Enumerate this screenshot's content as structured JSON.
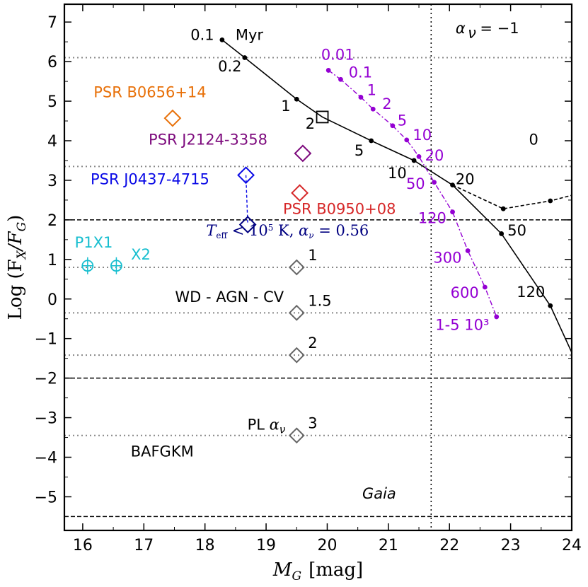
{
  "chart_data": {
    "type": "scatter",
    "xlabel": "M",
    "xlabel_sub": "G",
    "xlabel_unit": "[mag]",
    "ylabel": "Log (F",
    "ylabel_sub1": "X",
    "ylabel_mid": "/F",
    "ylabel_sub2": "G",
    "ylabel_end": ")",
    "xlim": [
      15.7,
      24.0
    ],
    "ylim": [
      -5.85,
      7.45
    ],
    "xticks": [
      16,
      17,
      18,
      19,
      20,
      21,
      22,
      23,
      24
    ],
    "yticks": [
      -5,
      -4,
      -3,
      -2,
      -1,
      0,
      1,
      2,
      3,
      4,
      5,
      6,
      7
    ],
    "hlines_dotted": [
      6.1,
      3.35,
      0.8,
      -0.35,
      -1.42,
      -3.45
    ],
    "hlines_dashed": [
      2.0,
      -2.0,
      -5.5
    ],
    "vline_dotted": 21.7,
    "colors": {
      "black": "#000000",
      "orange": "#e8710a",
      "purple": "#7d0a7d",
      "blue": "#0a0ae6",
      "red": "#d62728",
      "navy": "#000080",
      "cyan": "#17becf",
      "violet": "#9400d3",
      "gray": "#666666",
      "grid": "#888888"
    },
    "series": [
      {
        "name": "cooling-track",
        "color": "#000000",
        "points": [
          [
            18.28,
            6.55
          ],
          [
            18.65,
            6.1
          ],
          [
            19.5,
            5.05
          ],
          [
            19.92,
            4.6
          ],
          [
            20.72,
            4.0
          ],
          [
            21.42,
            3.5
          ],
          [
            22.05,
            2.88
          ],
          [
            22.85,
            1.65
          ],
          [
            23.65,
            -0.17
          ],
          [
            24.0,
            -1.35
          ]
        ],
        "markers": [
          [
            18.28,
            6.55
          ],
          [
            18.65,
            6.1
          ],
          [
            19.5,
            5.05
          ],
          [
            20.72,
            4.0
          ],
          [
            21.42,
            3.5
          ],
          [
            22.05,
            2.88
          ],
          [
            22.85,
            1.65
          ],
          [
            23.65,
            -0.17
          ]
        ],
        "labels": [
          {
            "text": "0.1",
            "x": 18.15,
            "y": 6.55,
            "anchor": "end"
          },
          {
            "text": "Myr",
            "x": 18.5,
            "y": 6.55,
            "anchor": "start"
          },
          {
            "text": "0.2",
            "x": 18.6,
            "y": 5.75,
            "anchor": "end"
          },
          {
            "text": "1",
            "x": 19.4,
            "y": 4.75,
            "anchor": "end"
          },
          {
            "text": "2",
            "x": 19.8,
            "y": 4.3,
            "anchor": "end"
          },
          {
            "text": "5",
            "x": 20.6,
            "y": 3.62,
            "anchor": "end"
          },
          {
            "text": "10",
            "x": 21.3,
            "y": 3.05,
            "anchor": "end"
          },
          {
            "text": "20",
            "x": 22.1,
            "y": 2.9,
            "anchor": "start"
          },
          {
            "text": "50",
            "x": 22.95,
            "y": 1.6,
            "anchor": "start"
          },
          {
            "text": "120",
            "x": 23.1,
            "y": 0.05,
            "anchor": "start"
          }
        ]
      },
      {
        "name": "cooling-track-alpha-minus1",
        "color": "#000000",
        "points": [
          [
            22.05,
            2.88
          ],
          [
            22.88,
            2.28
          ],
          [
            23.65,
            2.48
          ],
          [
            24.0,
            2.62
          ]
        ],
        "markers": [
          [
            22.88,
            2.28
          ],
          [
            23.65,
            2.48
          ]
        ],
        "labels": [
          {
            "text": "α",
            "x": 22.1,
            "y": 6.72,
            "anchor": "start",
            "italic": true
          },
          {
            "text": "ν",
            "x": 22.3,
            "y": 6.6,
            "anchor": "start",
            "italic": true,
            "small": true
          },
          {
            "text": "= −1",
            "x": 22.5,
            "y": 6.72,
            "anchor": "start"
          },
          {
            "text": "0",
            "x": 23.3,
            "y": 3.9,
            "anchor": "start"
          }
        ]
      },
      {
        "name": "second-track",
        "color": "#9400d3",
        "points": [
          [
            20.02,
            5.78
          ],
          [
            20.22,
            5.55
          ],
          [
            20.55,
            5.1
          ],
          [
            20.75,
            4.8
          ],
          [
            21.07,
            4.38
          ],
          [
            21.3,
            4.02
          ],
          [
            21.5,
            3.6
          ],
          [
            21.75,
            2.95
          ],
          [
            22.05,
            2.2
          ],
          [
            22.3,
            1.22
          ],
          [
            22.58,
            0.3
          ],
          [
            22.77,
            -0.45
          ]
        ],
        "markers": [
          [
            20.02,
            5.78
          ],
          [
            20.22,
            5.55
          ],
          [
            20.55,
            5.1
          ],
          [
            20.75,
            4.8
          ],
          [
            21.07,
            4.38
          ],
          [
            21.3,
            4.02
          ],
          [
            21.5,
            3.6
          ],
          [
            21.75,
            2.95
          ],
          [
            22.05,
            2.2
          ],
          [
            22.3,
            1.22
          ],
          [
            22.58,
            0.3
          ],
          [
            22.77,
            -0.45
          ]
        ],
        "labels": [
          {
            "text": "0.01",
            "x": 19.9,
            "y": 6.05,
            "anchor": "start"
          },
          {
            "text": "0.1",
            "x": 20.35,
            "y": 5.6,
            "anchor": "start"
          },
          {
            "text": "1",
            "x": 20.65,
            "y": 5.15,
            "anchor": "start"
          },
          {
            "text": "2",
            "x": 20.9,
            "y": 4.8,
            "anchor": "start"
          },
          {
            "text": "5",
            "x": 21.15,
            "y": 4.38,
            "anchor": "start"
          },
          {
            "text": "10",
            "x": 21.4,
            "y": 4.02,
            "anchor": "start"
          },
          {
            "text": "20",
            "x": 21.6,
            "y": 3.5,
            "anchor": "start"
          },
          {
            "text": "50",
            "x": 21.6,
            "y": 2.78,
            "anchor": "end"
          },
          {
            "text": "120",
            "x": 21.95,
            "y": 1.92,
            "anchor": "end"
          },
          {
            "text": "300",
            "x": 22.2,
            "y": 0.92,
            "anchor": "end"
          },
          {
            "text": "600",
            "x": 22.48,
            "y": 0.03,
            "anchor": "end"
          },
          {
            "text": "1-5 10³",
            "x": 22.65,
            "y": -0.78,
            "anchor": "end"
          }
        ]
      }
    ],
    "sources": [
      {
        "name": "PSR B0656+14",
        "x": 17.47,
        "y": 4.57,
        "color": "#e8710a",
        "label_x": 17.1,
        "label_y": 5.1,
        "anchor": "middle"
      },
      {
        "name": "PSR J2124-3358",
        "x": 19.6,
        "y": 3.68,
        "color": "#7d0a7d",
        "label_x": 18.05,
        "label_y": 3.9,
        "anchor": "middle"
      },
      {
        "name": "PSR J0437-4715",
        "x": 18.67,
        "y": 3.13,
        "color": "#0a0ae6",
        "label_x": 17.1,
        "label_y": 2.9,
        "anchor": "middle"
      },
      {
        "name": "PSR J0437-4715 low",
        "x": 18.7,
        "y": 1.88,
        "color": "#000080"
      },
      {
        "name": "PSR B0950+08",
        "x": 19.55,
        "y": 2.68,
        "color": "#d62728",
        "label_x": 20.2,
        "label_y": 2.15,
        "anchor": "middle"
      }
    ],
    "pl_diamonds": [
      {
        "alpha": "1",
        "x": 19.5,
        "y": 0.8
      },
      {
        "alpha": "1.5",
        "x": 19.5,
        "y": -0.35
      },
      {
        "alpha": "2",
        "x": 19.5,
        "y": -1.42
      },
      {
        "alpha": "3",
        "x": 19.5,
        "y": -3.45
      }
    ],
    "pl_label": "PL",
    "pl_alpha": "α",
    "pl_nu": "ν",
    "square_marker": {
      "x": 19.92,
      "y": 4.6
    },
    "xdins": [
      {
        "name": "P1X1",
        "x": 16.08,
        "y": 0.84,
        "label_x": 16.18,
        "label_y": 1.3
      },
      {
        "name": "X2",
        "x": 16.55,
        "y": 0.84,
        "label_x": 16.95,
        "label_y": 1.0
      }
    ],
    "teff_label": {
      "T": "T",
      "sub": "eff",
      "rest": "< 10",
      "sup": "5",
      "k": "K,",
      "alpha": "α",
      "nu": "ν",
      "val": "= 0.56",
      "x": 19.35,
      "y": 1.6
    },
    "region_labels": [
      {
        "text": "WD - AGN - CV",
        "x": 18.4,
        "y": -0.08
      },
      {
        "text": "BAFGKM",
        "x": 17.3,
        "y": -3.98
      }
    ],
    "gaia_label": {
      "text": "Gaia",
      "x": 20.85,
      "y": -5.05
    }
  }
}
